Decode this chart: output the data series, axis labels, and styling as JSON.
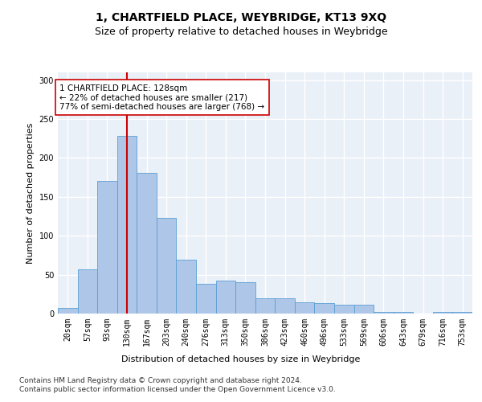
{
  "title": "1, CHARTFIELD PLACE, WEYBRIDGE, KT13 9XQ",
  "subtitle": "Size of property relative to detached houses in Weybridge",
  "xlabel": "Distribution of detached houses by size in Weybridge",
  "ylabel": "Number of detached properties",
  "footer_line1": "Contains HM Land Registry data © Crown copyright and database right 2024.",
  "footer_line2": "Contains public sector information licensed under the Open Government Licence v3.0.",
  "bin_labels": [
    "20sqm",
    "57sqm",
    "93sqm",
    "130sqm",
    "167sqm",
    "203sqm",
    "240sqm",
    "276sqm",
    "313sqm",
    "350sqm",
    "386sqm",
    "423sqm",
    "460sqm",
    "496sqm",
    "533sqm",
    "569sqm",
    "606sqm",
    "643sqm",
    "679sqm",
    "716sqm",
    "753sqm"
  ],
  "bar_heights": [
    7,
    57,
    170,
    228,
    181,
    123,
    69,
    38,
    42,
    40,
    20,
    20,
    14,
    13,
    11,
    11,
    2,
    2,
    0,
    2,
    2
  ],
  "bar_color": "#aec6e8",
  "bar_edgecolor": "#5a9fd4",
  "property_bin_index": 3,
  "vline_color": "#cc0000",
  "annotation_text": "1 CHARTFIELD PLACE: 128sqm\n← 22% of detached houses are smaller (217)\n77% of semi-detached houses are larger (768) →",
  "annotation_bbox_edgecolor": "#cc0000",
  "annotation_bbox_facecolor": "white",
  "ylim": [
    0,
    310
  ],
  "background_color": "#eaf0f8",
  "grid_color": "white",
  "title_fontsize": 10,
  "subtitle_fontsize": 9,
  "label_fontsize": 8,
  "tick_fontsize": 7,
  "footer_fontsize": 6.5,
  "annotation_fontsize": 7.5
}
